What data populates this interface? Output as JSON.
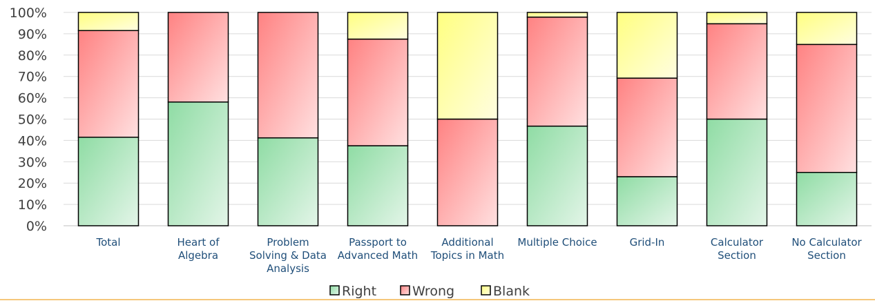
{
  "chart_data": {
    "type": "bar",
    "stacked": true,
    "percent": true,
    "categories": [
      [
        "Total"
      ],
      [
        "Heart of",
        "Algebra"
      ],
      [
        "Problem",
        "Solving & Data",
        "Analysis"
      ],
      [
        "Passport to",
        "Advanced Math"
      ],
      [
        "Additional",
        "Topics in Math"
      ],
      [
        "Multiple Choice"
      ],
      [
        "Grid-In"
      ],
      [
        "Calculator",
        "Section"
      ],
      [
        "No Calculator",
        "Section"
      ]
    ],
    "series": [
      {
        "name": "Right",
        "values": [
          41.5,
          58,
          41.2,
          37.5,
          0,
          46.7,
          23,
          50,
          25
        ]
      },
      {
        "name": "Wrong",
        "values": [
          50,
          42,
          58.8,
          50,
          50,
          51.1,
          46.2,
          44.7,
          60
        ]
      },
      {
        "name": "Blank",
        "values": [
          8.5,
          0,
          0,
          12.5,
          50,
          2.2,
          30.8,
          5.3,
          15
        ]
      }
    ],
    "ylim": [
      0,
      100
    ],
    "yticks": [
      "0%",
      "10%",
      "20%",
      "30%",
      "40%",
      "50%",
      "60%",
      "70%",
      "80%",
      "90%",
      "100%"
    ],
    "grid": true,
    "legend": "bottom",
    "colors": {
      "Right": [
        "#8fdca4",
        "#e3f5e8"
      ],
      "Wrong": [
        "#ff8282",
        "#ffe0e0"
      ],
      "Blank": [
        "#ffff80",
        "#fffde0"
      ]
    }
  }
}
